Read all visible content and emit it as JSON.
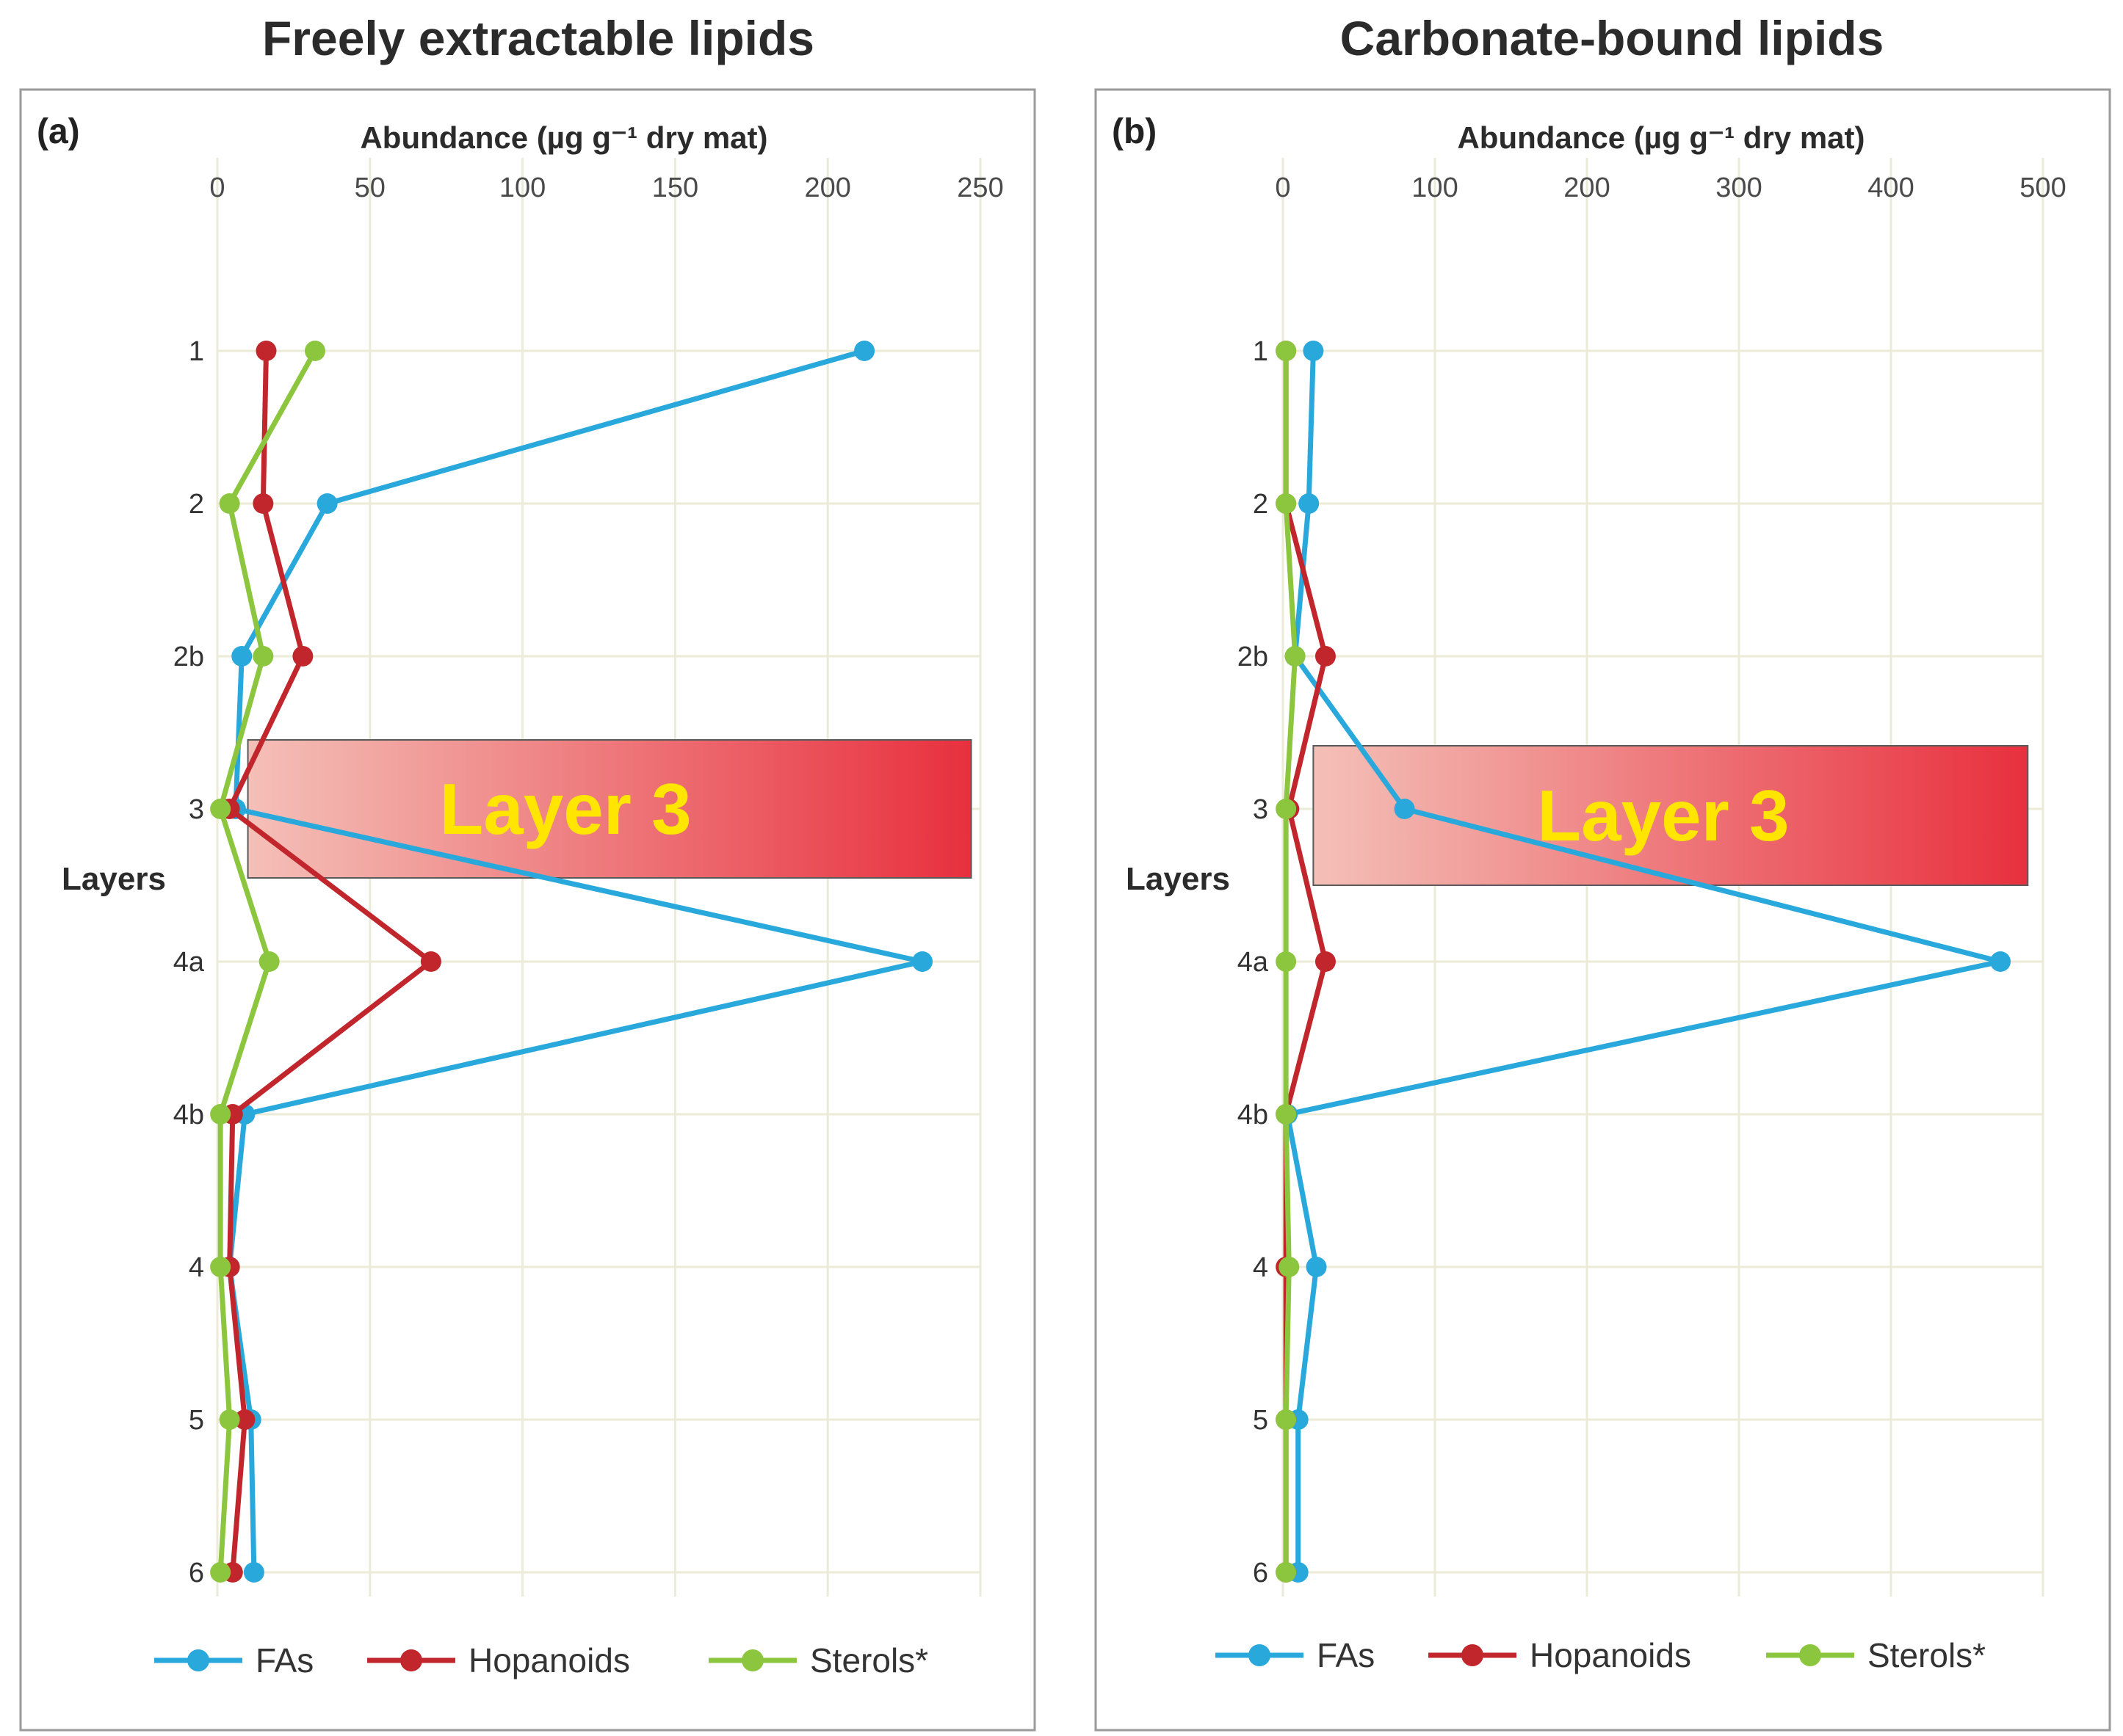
{
  "charts_header": {
    "titles": [
      "Freely extractable lipids",
      "Carbonate-bound lipids"
    ]
  },
  "chart_data": [
    {
      "type": "line",
      "panel_label": "(a)",
      "title": "Freely extractable lipids",
      "xlabel": "Abundance (µg g⁻¹ dry mat)",
      "ylabel": "Layers",
      "categories": [
        "1",
        "2",
        "2b",
        "3",
        "4a",
        "4b",
        "4",
        "5",
        "6"
      ],
      "xlim": [
        0,
        250
      ],
      "xticks": [
        0,
        50,
        100,
        150,
        200,
        250
      ],
      "highlight": {
        "label": "Layer 3",
        "x_range": [
          10,
          247
        ]
      },
      "series": [
        {
          "name": "FAs",
          "color": "#29a8dc",
          "values": [
            212,
            36,
            8,
            6,
            231,
            9,
            4,
            11,
            12
          ]
        },
        {
          "name": "Hopanoids",
          "color": "#c0262c",
          "values": [
            16,
            15,
            28,
            4,
            70,
            5,
            4,
            9,
            5
          ]
        },
        {
          "name": "Sterols*",
          "color": "#8cc63f",
          "values": [
            32,
            4,
            15,
            1,
            17,
            1,
            1,
            4,
            1
          ]
        }
      ],
      "legend": [
        "FAs",
        "Hopanoids",
        "Sterols*"
      ]
    },
    {
      "type": "line",
      "panel_label": "(b)",
      "title": "Carbonate-bound lipids",
      "xlabel": "Abundance (µg g⁻¹ dry mat)",
      "ylabel": "Layers",
      "categories": [
        "1",
        "2",
        "2b",
        "3",
        "4a",
        "4b",
        "4",
        "5",
        "6"
      ],
      "xlim": [
        0,
        500
      ],
      "xticks": [
        0,
        100,
        200,
        300,
        400,
        500
      ],
      "highlight": {
        "label": "Layer 3",
        "x_range": [
          20,
          490
        ]
      },
      "series": [
        {
          "name": "FAs",
          "color": "#29a8dc",
          "values": [
            20,
            17,
            8,
            80,
            472,
            3,
            22,
            10,
            10
          ]
        },
        {
          "name": "Hopanoids",
          "color": "#c0262c",
          "values": [
            2,
            2,
            28,
            4,
            28,
            2,
            2,
            2,
            2
          ]
        },
        {
          "name": "Sterols*",
          "color": "#8cc63f",
          "values": [
            2,
            2,
            8,
            2,
            2,
            2,
            4,
            2,
            2
          ]
        }
      ],
      "legend": [
        "FAs",
        "Hopanoids",
        "Sterols*"
      ]
    }
  ]
}
